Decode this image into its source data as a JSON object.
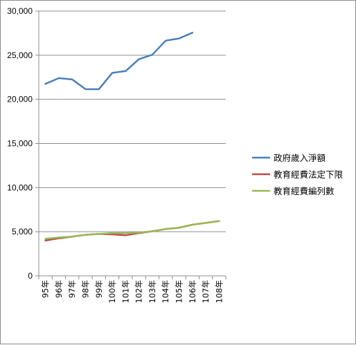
{
  "chart_data": {
    "type": "line",
    "categories": [
      "95年",
      "96年",
      "97年",
      "98年",
      "99年",
      "100年",
      "101年",
      "102年",
      "103年",
      "104年",
      "105年",
      "106年",
      "107年",
      "108年"
    ],
    "ylim": [
      0,
      30000
    ],
    "yticks": [
      0,
      5000,
      10000,
      15000,
      20000,
      25000,
      30000
    ],
    "ytick_labels": [
      "0",
      "5,000",
      "10,000",
      "15,000",
      "20,000",
      "25,000",
      "30,000"
    ],
    "grid": "horizontal",
    "legend_position": "right",
    "series": [
      {
        "name": "政府歲入淨額",
        "color": "#4a7ebb",
        "values": [
          21750,
          22400,
          22250,
          21150,
          21150,
          23000,
          23200,
          24550,
          25050,
          26650,
          26900,
          27550,
          null,
          null
        ]
      },
      {
        "name": "教育經費法定下限",
        "color": "#be4b48",
        "values": [
          4000,
          4250,
          4450,
          4650,
          4750,
          4700,
          4600,
          4850,
          5050,
          5300,
          5450,
          5800,
          6000,
          6200
        ]
      },
      {
        "name": "教育經費編列數",
        "color": "#98b954",
        "values": [
          4200,
          4350,
          4450,
          4650,
          4750,
          4850,
          4850,
          4900,
          5050,
          5300,
          5450,
          5800,
          6000,
          6200
        ]
      }
    ]
  }
}
